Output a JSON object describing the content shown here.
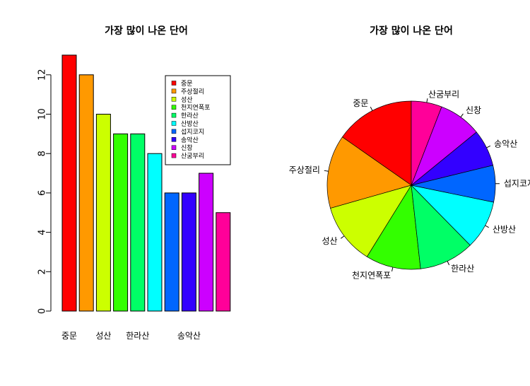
{
  "chart_data": [
    {
      "type": "bar",
      "title": "가장 많이 나온 단어",
      "xlabel": "",
      "ylabel": "",
      "ylim": [
        0,
        13
      ],
      "yticks": [
        0,
        2,
        4,
        6,
        8,
        10,
        12
      ],
      "categories": [
        "중문",
        "주상절리",
        "성산",
        "천지연폭포",
        "한라산",
        "산방산",
        "섭지코지",
        "송악산",
        "신창",
        "산굼부리"
      ],
      "values": [
        13,
        12,
        10,
        9,
        9,
        8,
        6,
        6,
        7,
        5
      ],
      "visible_category_labels": [
        "중문",
        "",
        "성산",
        "",
        "한라산",
        "",
        "",
        "송악산",
        "",
        ""
      ],
      "colors": [
        "#FF0000",
        "#FF9900",
        "#CCFF00",
        "#33FF00",
        "#00FF66",
        "#00FFFF",
        "#0066FF",
        "#3300FF",
        "#CC00FF",
        "#FF0099"
      ],
      "legend": {
        "position": "top-right",
        "entries": [
          "중문",
          "주상절리",
          "성산",
          "천지연폭포",
          "한라산",
          "산방산",
          "섭지코지",
          "송악산",
          "신창",
          "산굼부리"
        ]
      }
    },
    {
      "type": "pie",
      "title": "가장 많이 나온 단어",
      "labels": [
        "중문",
        "주상절리",
        "성산",
        "천지연폭포",
        "한라산",
        "산방산",
        "섭지코지",
        "송악산",
        "신창",
        "산굼부리"
      ],
      "values": [
        13,
        12,
        10,
        9,
        9,
        8,
        6,
        6,
        7,
        5
      ],
      "colors": [
        "#FF0000",
        "#FF9900",
        "#CCFF00",
        "#33FF00",
        "#00FF66",
        "#00FFFF",
        "#0066FF",
        "#3300FF",
        "#CC00FF",
        "#FF0099"
      ]
    }
  ]
}
